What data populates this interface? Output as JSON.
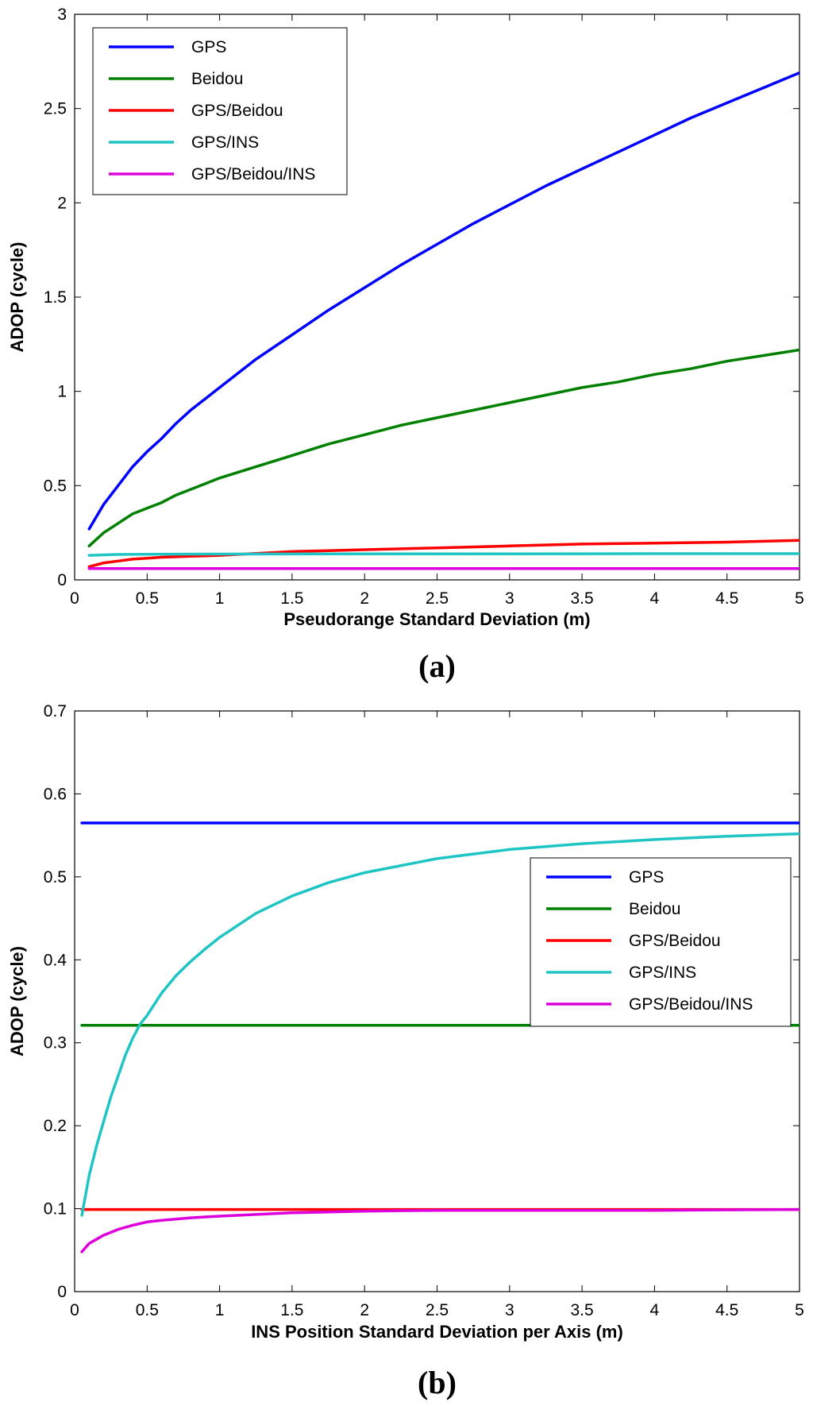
{
  "colors": {
    "GPS": "#0000ff",
    "Beidou": "#008000",
    "GPS/Beidou": "#ff0000",
    "GPS/INS": "#1fc5c5",
    "GPS/Beidou/INS": "#dd00dd"
  },
  "chart_data": [
    {
      "type": "line",
      "panel_label": "(a)",
      "title": "",
      "xlabel": "Pseudorange Standard Deviation (m)",
      "ylabel": "ADOP (cycle)",
      "xlim": [
        0,
        5
      ],
      "ylim": [
        0,
        3
      ],
      "xticks": [
        0,
        0.5,
        1,
        1.5,
        2,
        2.5,
        3,
        3.5,
        4,
        4.5,
        5
      ],
      "xtick_labels": [
        "0",
        "0.5",
        "1",
        "1.5",
        "2",
        "2.5",
        "3",
        "3.5",
        "4",
        "4.5",
        "5"
      ],
      "yticks": [
        0,
        0.5,
        1,
        1.5,
        2,
        2.5,
        3
      ],
      "ytick_labels": [
        "0",
        "0.5",
        "1",
        "1.5",
        "2",
        "2.5",
        "3"
      ],
      "legend_position": "top-left",
      "series": [
        {
          "name": "GPS",
          "x": [
            0.1,
            0.2,
            0.3,
            0.4,
            0.5,
            0.6,
            0.7,
            0.8,
            0.9,
            1.0,
            1.25,
            1.5,
            1.75,
            2.0,
            2.25,
            2.5,
            2.75,
            3.0,
            3.25,
            3.5,
            3.75,
            4.0,
            4.25,
            4.5,
            4.75,
            5.0
          ],
          "y": [
            0.27,
            0.4,
            0.5,
            0.6,
            0.68,
            0.75,
            0.83,
            0.9,
            0.96,
            1.02,
            1.17,
            1.3,
            1.43,
            1.55,
            1.67,
            1.78,
            1.89,
            1.99,
            2.09,
            2.18,
            2.27,
            2.36,
            2.45,
            2.53,
            2.61,
            2.69
          ]
        },
        {
          "name": "Beidou",
          "x": [
            0.1,
            0.2,
            0.3,
            0.4,
            0.5,
            0.6,
            0.7,
            0.8,
            0.9,
            1.0,
            1.25,
            1.5,
            1.75,
            2.0,
            2.25,
            2.5,
            2.75,
            3.0,
            3.25,
            3.5,
            3.75,
            4.0,
            4.25,
            4.5,
            4.75,
            5.0
          ],
          "y": [
            0.18,
            0.25,
            0.3,
            0.35,
            0.38,
            0.41,
            0.45,
            0.48,
            0.51,
            0.54,
            0.6,
            0.66,
            0.72,
            0.77,
            0.82,
            0.86,
            0.9,
            0.94,
            0.98,
            1.02,
            1.05,
            1.09,
            1.12,
            1.16,
            1.19,
            1.22
          ]
        },
        {
          "name": "GPS/Beidou",
          "x": [
            0.1,
            0.2,
            0.3,
            0.4,
            0.5,
            0.6,
            0.8,
            1.0,
            1.25,
            1.5,
            1.75,
            2.0,
            2.5,
            3.0,
            3.5,
            4.0,
            4.5,
            5.0
          ],
          "y": [
            0.07,
            0.09,
            0.1,
            0.11,
            0.115,
            0.12,
            0.125,
            0.13,
            0.14,
            0.15,
            0.155,
            0.16,
            0.17,
            0.18,
            0.19,
            0.195,
            0.2,
            0.21
          ]
        },
        {
          "name": "GPS/INS",
          "x": [
            0.1,
            0.3,
            0.5,
            1.0,
            2.0,
            3.0,
            4.0,
            5.0
          ],
          "y": [
            0.13,
            0.135,
            0.136,
            0.137,
            0.138,
            0.138,
            0.139,
            0.139
          ]
        },
        {
          "name": "GPS/Beidou/INS",
          "x": [
            0.1,
            1.0,
            2.0,
            3.0,
            4.0,
            5.0
          ],
          "y": [
            0.06,
            0.06,
            0.06,
            0.06,
            0.06,
            0.06
          ]
        }
      ]
    },
    {
      "type": "line",
      "panel_label": "(b)",
      "title": "",
      "xlabel": "INS Position Standard Deviation per Axis (m)",
      "ylabel": "ADOP (cycle)",
      "xlim": [
        0,
        5
      ],
      "ylim": [
        0,
        0.7
      ],
      "xticks": [
        0,
        0.5,
        1,
        1.5,
        2,
        2.5,
        3,
        3.5,
        4,
        4.5,
        5
      ],
      "xtick_labels": [
        "0",
        "0.5",
        "1",
        "1.5",
        "2",
        "2.5",
        "3",
        "3.5",
        "4",
        "4.5",
        "5"
      ],
      "yticks": [
        0,
        0.1,
        0.2,
        0.3,
        0.4,
        0.5,
        0.6,
        0.7
      ],
      "ytick_labels": [
        "0",
        "0.1",
        "0.2",
        "0.3",
        "0.4",
        "0.5",
        "0.6",
        "0.7"
      ],
      "legend_position": "right-middle",
      "series": [
        {
          "name": "GPS",
          "x": [
            0.05,
            5.0
          ],
          "y": [
            0.565,
            0.565
          ]
        },
        {
          "name": "Beidou",
          "x": [
            0.05,
            5.0
          ],
          "y": [
            0.321,
            0.321
          ]
        },
        {
          "name": "GPS/Beidou",
          "x": [
            0.05,
            5.0
          ],
          "y": [
            0.099,
            0.099
          ]
        },
        {
          "name": "GPS/INS",
          "x": [
            0.05,
            0.1,
            0.15,
            0.2,
            0.25,
            0.3,
            0.35,
            0.4,
            0.45,
            0.5,
            0.6,
            0.7,
            0.8,
            0.9,
            1.0,
            1.25,
            1.5,
            1.75,
            2.0,
            2.5,
            3.0,
            3.5,
            4.0,
            4.5,
            5.0
          ],
          "y": [
            0.092,
            0.14,
            0.175,
            0.205,
            0.235,
            0.26,
            0.285,
            0.305,
            0.322,
            0.333,
            0.36,
            0.381,
            0.398,
            0.413,
            0.427,
            0.456,
            0.477,
            0.493,
            0.505,
            0.522,
            0.533,
            0.54,
            0.545,
            0.549,
            0.552
          ]
        },
        {
          "name": "GPS/Beidou/INS",
          "x": [
            0.05,
            0.1,
            0.2,
            0.3,
            0.4,
            0.5,
            0.6,
            0.8,
            1.0,
            1.25,
            1.5,
            2.0,
            2.5,
            3.0,
            4.0,
            5.0
          ],
          "y": [
            0.048,
            0.058,
            0.068,
            0.075,
            0.08,
            0.084,
            0.086,
            0.089,
            0.091,
            0.093,
            0.095,
            0.097,
            0.098,
            0.098,
            0.098,
            0.099
          ]
        }
      ]
    }
  ]
}
